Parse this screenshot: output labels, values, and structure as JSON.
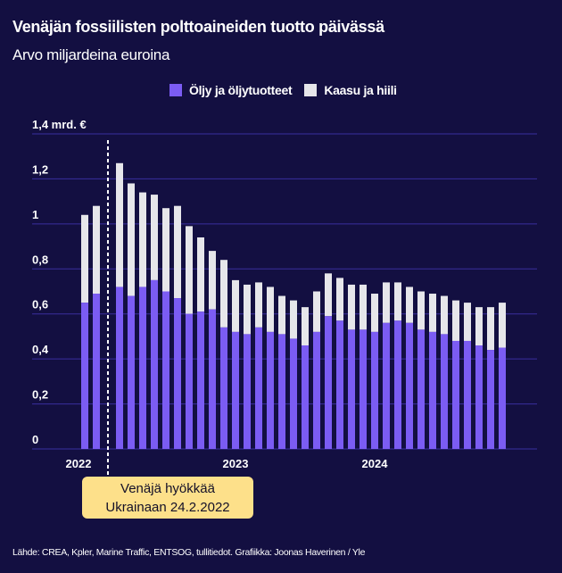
{
  "header": {
    "title": "Venäjän fossiilisten polttoaineiden tuotto päivässä",
    "subtitle": "Arvo miljardeina euroina"
  },
  "colors": {
    "background": "#130f41",
    "oil": "#7b5cf3",
    "gas_coal": "#e6e6ea",
    "grid": "#3a2f9e",
    "annotation_bg": "#fde08a"
  },
  "annotation": {
    "line1": "Venäjä hyökkää",
    "line2": "Ukrainaan 24.2.2022"
  },
  "source": "Lähde: CREA, Kpler, Marine Traffic, ENTSOG, tullitiedot. Grafiikka: Joonas Haverinen / Yle",
  "chart_data": {
    "type": "bar",
    "stacked": true,
    "title": "Venäjän fossiilisten polttoaineiden tuotto päivässä",
    "subtitle": "Arvo miljardeina euroina",
    "xlabel": "",
    "ylabel": "mrd. €",
    "ylim": [
      0,
      1.4
    ],
    "yticks": [
      0,
      0.2,
      0.4,
      0.6,
      0.8,
      1,
      1.2,
      1.4
    ],
    "ytick_labels": [
      "0",
      "0,2",
      "0,4",
      "0,6",
      "0,8",
      "1",
      "1,2",
      "1,4 mrd. €"
    ],
    "xtick_labels": [
      {
        "label": "2022",
        "index": 0
      },
      {
        "label": "2023",
        "index": 12
      },
      {
        "label": "2024",
        "index": 24
      }
    ],
    "grid": true,
    "legend_position": "top-center",
    "categories": [
      "2022-01",
      "2022-02",
      "2022-03",
      "2022-04",
      "2022-05",
      "2022-06",
      "2022-07",
      "2022-08",
      "2022-09",
      "2022-10",
      "2022-11",
      "2022-12",
      "2023-01",
      "2023-02",
      "2023-03",
      "2023-04",
      "2023-05",
      "2023-06",
      "2023-07",
      "2023-08",
      "2023-09",
      "2023-10",
      "2023-11",
      "2023-12",
      "2024-01",
      "2024-02",
      "2024-03",
      "2024-04",
      "2024-05",
      "2024-06",
      "2024-07",
      "2024-08",
      "2024-09",
      "2024-10",
      "2024-11",
      "2024-12"
    ],
    "series": [
      {
        "name": "Öljy ja öljytuotteet",
        "values": [
          0.65,
          0.69,
          0.72,
          0.68,
          0.72,
          0.75,
          0.7,
          0.67,
          0.6,
          0.61,
          0.62,
          0.54,
          0.52,
          0.51,
          0.54,
          0.52,
          0.51,
          0.49,
          0.46,
          0.52,
          0.59,
          0.57,
          0.53,
          0.53,
          0.52,
          0.56,
          0.57,
          0.56,
          0.53,
          0.52,
          0.51,
          0.48,
          0.48,
          0.46,
          0.44,
          0.45
        ]
      },
      {
        "name": "Kaasu ja hiili",
        "values": [
          0.39,
          0.39,
          0.55,
          0.5,
          0.42,
          0.38,
          0.37,
          0.41,
          0.39,
          0.33,
          0.26,
          0.3,
          0.23,
          0.22,
          0.2,
          0.2,
          0.17,
          0.17,
          0.17,
          0.18,
          0.19,
          0.19,
          0.2,
          0.2,
          0.17,
          0.18,
          0.17,
          0.16,
          0.17,
          0.17,
          0.17,
          0.18,
          0.17,
          0.17,
          0.19,
          0.2
        ]
      }
    ],
    "annotation": {
      "text": "Venäjä hyökkää Ukrainaan 24.2.2022",
      "after_index": 1,
      "style": "dashed-vertical-line"
    }
  }
}
